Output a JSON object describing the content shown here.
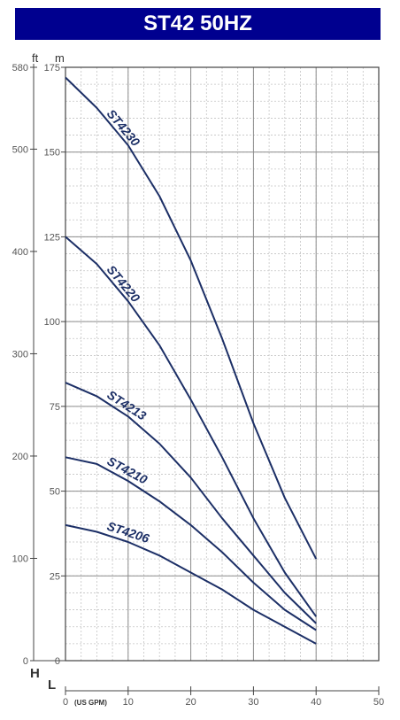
{
  "colors": {
    "title_bg": "#00008f",
    "title_text": "#ffffff",
    "grid_major": "#8c8c8c",
    "grid_minor": "#c4c4c4",
    "curve": "#1c2f66",
    "axis_text": "#555555"
  },
  "chart_data": {
    "type": "line",
    "title": "ST42 50HZ",
    "xlabel": "L",
    "x_unit": "(US GPM)",
    "ylabel": "H",
    "y_unit_left": "ft",
    "y_unit_right": "m",
    "xlim": [
      0,
      50
    ],
    "ylim": [
      0,
      175
    ],
    "x_ticks": [
      0,
      10,
      20,
      30,
      40,
      50
    ],
    "y_ticks": [
      0,
      25,
      50,
      75,
      100,
      125,
      150,
      175
    ],
    "y_ticks_ft": [
      0,
      100,
      200,
      300,
      400,
      500,
      580
    ],
    "grid": true,
    "series": [
      {
        "name": "ST4230",
        "points": [
          [
            0,
            172
          ],
          [
            5,
            163
          ],
          [
            10,
            152
          ],
          [
            15,
            137
          ],
          [
            20,
            118
          ],
          [
            25,
            95
          ],
          [
            30,
            70
          ],
          [
            35,
            48
          ],
          [
            40,
            30
          ]
        ]
      },
      {
        "name": "ST4220",
        "points": [
          [
            0,
            125
          ],
          [
            5,
            117
          ],
          [
            10,
            106
          ],
          [
            15,
            93
          ],
          [
            20,
            77
          ],
          [
            25,
            60
          ],
          [
            30,
            42
          ],
          [
            35,
            26
          ],
          [
            40,
            13
          ]
        ]
      },
      {
        "name": "ST4213",
        "points": [
          [
            0,
            82
          ],
          [
            5,
            78
          ],
          [
            10,
            72
          ],
          [
            15,
            64
          ],
          [
            20,
            54
          ],
          [
            25,
            42
          ],
          [
            30,
            31
          ],
          [
            35,
            20
          ],
          [
            40,
            11
          ]
        ]
      },
      {
        "name": "ST4210",
        "points": [
          [
            0,
            60
          ],
          [
            5,
            58
          ],
          [
            10,
            53
          ],
          [
            15,
            47
          ],
          [
            20,
            40
          ],
          [
            25,
            32
          ],
          [
            30,
            23
          ],
          [
            35,
            15
          ],
          [
            40,
            9
          ]
        ]
      },
      {
        "name": "ST4206",
        "points": [
          [
            0,
            40
          ],
          [
            5,
            38
          ],
          [
            10,
            35
          ],
          [
            15,
            31
          ],
          [
            20,
            26
          ],
          [
            25,
            21
          ],
          [
            30,
            15
          ],
          [
            35,
            10
          ],
          [
            40,
            5
          ]
        ]
      }
    ]
  }
}
